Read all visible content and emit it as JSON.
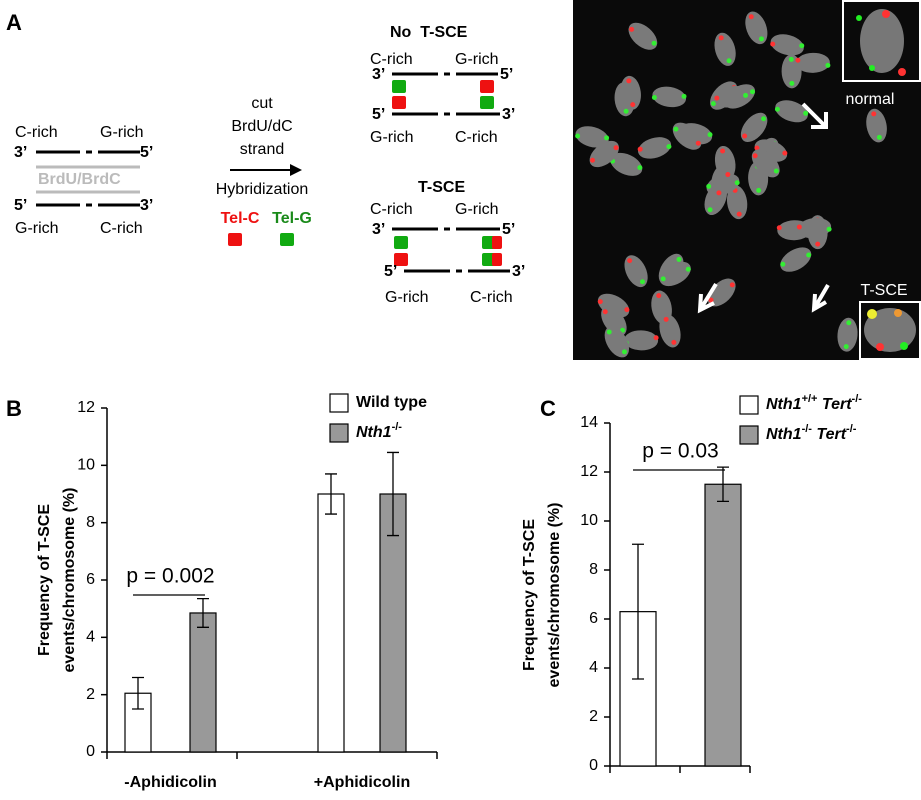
{
  "texts": [
    "A",
    "C-rich",
    "G-rich",
    "3’",
    "5’",
    "BrdU/BrdC",
    "5’",
    "3’",
    "G-rich",
    "C-rich",
    "cut",
    "BrdU/dC",
    "strand",
    "Hybridization",
    "Tel-C",
    "Tel-G",
    "No  T-SCE",
    "C-rich",
    "G-rich",
    "3’",
    "5’",
    "5’",
    "3’",
    "G-rich",
    "C-rich",
    "T-SCE",
    "C-rich",
    "G-rich",
    "3’",
    "5’",
    "5’",
    "3’",
    "G-rich",
    "C-rich",
    "normal",
    "T-SCE",
    "B",
    "C"
  ],
  "chart_data": [
    {
      "type": "bar",
      "ylabel": [
        "Frequency of T-SCE",
        "events/chromosome (%)"
      ],
      "categories": [
        "-Aphidicolin",
        "+Aphidicolin"
      ],
      "series": [
        {
          "name": "Wild type",
          "color": "#ffffff",
          "values": [
            2.05,
            9.0
          ],
          "errors": [
            0.55,
            0.7
          ]
        },
        {
          "name": "Nth1-/-",
          "color": "#999999",
          "values": [
            4.85,
            9.0
          ],
          "errors": [
            0.5,
            1.45
          ]
        }
      ],
      "ylim": [
        0,
        12
      ],
      "yticks": [
        0,
        2,
        4,
        6,
        8,
        10,
        12
      ],
      "annotations": [
        "p = 0.002"
      ]
    },
    {
      "type": "bar",
      "ylabel": [
        "Frequency of T-SCE",
        "events/chromosome (%)"
      ],
      "categories": [
        null
      ],
      "series": [
        {
          "name": "Nth1+/+ Tert-/-",
          "color": "#ffffff",
          "values": [
            6.3
          ],
          "errors": [
            2.75
          ]
        },
        {
          "name": "Nth1-/- Tert-/-",
          "color": "#999999",
          "values": [
            11.5
          ],
          "errors": [
            0.7
          ]
        }
      ],
      "ylim": [
        0,
        14
      ],
      "yticks": [
        0,
        2,
        4,
        6,
        8,
        10,
        12,
        14
      ],
      "annotations": [
        "p = 0.03"
      ]
    }
  ]
}
